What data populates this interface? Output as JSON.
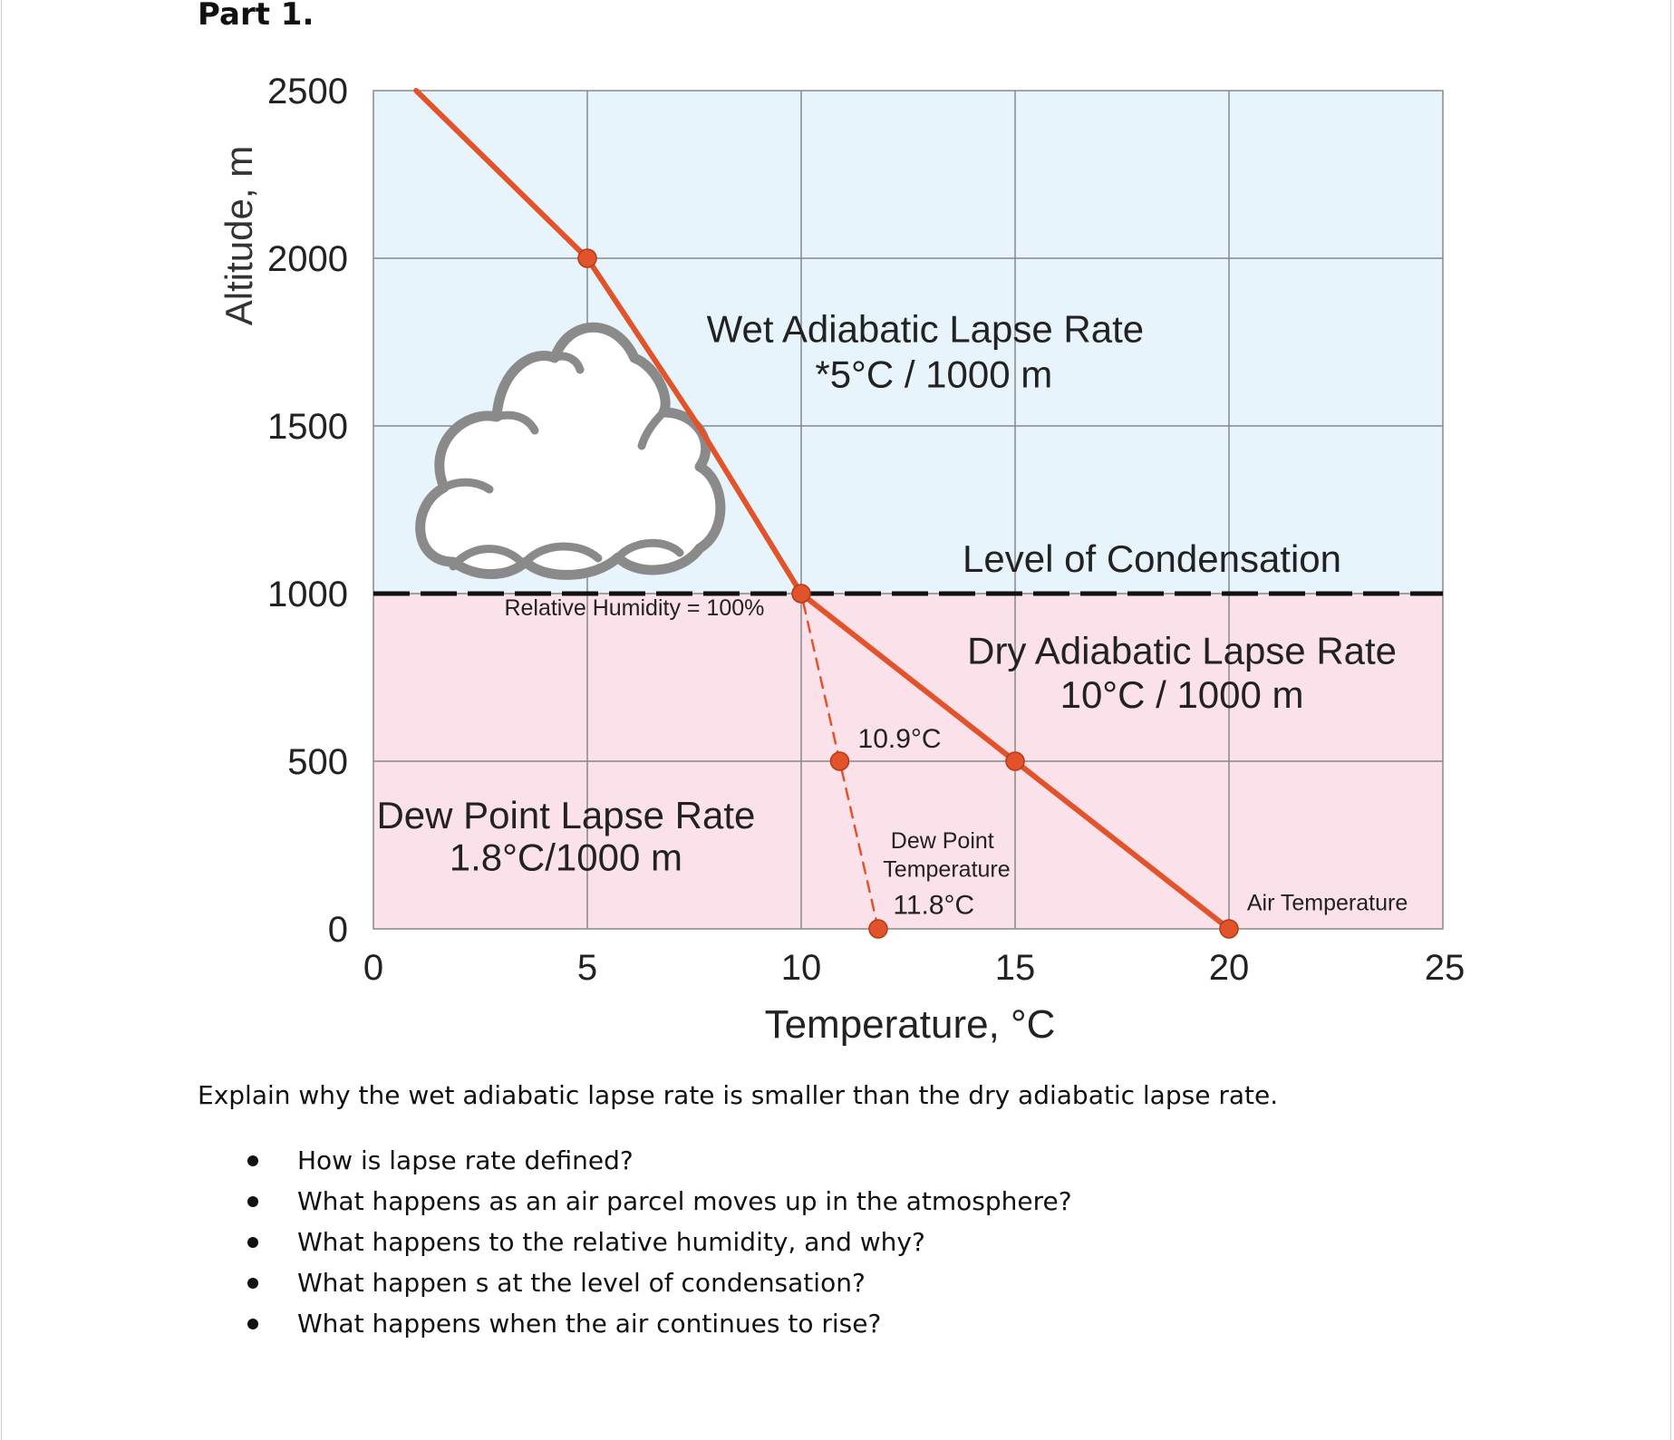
{
  "page": {
    "part_title": "Part 1.",
    "question": "Explain why the wet adiabatic lapse rate is smaller than the dry adiabatic lapse rate.",
    "bullets": [
      "How is lapse rate defined?",
      "What happens as an air parcel moves up in the atmosphere?",
      "What happens to the relative humidity, and why?",
      "What happen s at the level of condensation?",
      "What happens when the air continues to rise?"
    ]
  },
  "chart_data": {
    "type": "line",
    "xlabel": "Temperature, °C",
    "ylabel": "Altitude, m",
    "xlim": [
      0,
      25
    ],
    "ylim": [
      0,
      2500
    ],
    "xticks": [
      0,
      5,
      10,
      15,
      20,
      25
    ],
    "yticks": [
      0,
      500,
      1000,
      1500,
      2000,
      2500
    ],
    "grid": true,
    "condensation_level": 1000,
    "regions": {
      "above_condensation": {
        "color": "#e8f4fc"
      },
      "below_condensation": {
        "color": "#fbe1ea"
      }
    },
    "colors": {
      "series": "#e2532b",
      "grid": "#888888",
      "dashed_level": "#111111"
    },
    "series": [
      {
        "style": "solid",
        "points": [
          [
            1,
            2500
          ],
          [
            5,
            2000
          ],
          [
            7.6,
            1500
          ],
          [
            10,
            1000
          ],
          [
            15,
            500
          ],
          [
            20,
            0
          ]
        ],
        "markers": [
          [
            5,
            2000
          ],
          [
            10,
            1000
          ],
          [
            15,
            500
          ],
          [
            20,
            0
          ]
        ]
      },
      {
        "style": "dashed",
        "points": [
          [
            11.8,
            0
          ],
          [
            10.9,
            500
          ],
          [
            10,
            1000
          ]
        ],
        "markers": [
          [
            11.8,
            0
          ],
          [
            10.9,
            500
          ]
        ]
      }
    ],
    "annotations": [
      {
        "text": "Wet Adiabatic Lapse Rate",
        "x": 12.9,
        "y": 1750,
        "size": "large"
      },
      {
        "text": "*5°C / 1000 m",
        "x": 13.1,
        "y": 1615,
        "size": "large"
      },
      {
        "text": "Level of Condensation",
        "x": 18.2,
        "y": 1065,
        "size": "large"
      },
      {
        "text": "Relative Humidity = 100%",
        "x": 6.1,
        "y": 935,
        "size": "small"
      },
      {
        "text": "Dry Adiabatic Lapse Rate",
        "x": 18.9,
        "y": 790,
        "size": "large"
      },
      {
        "text": "10°C / 1000 m",
        "x": 18.9,
        "y": 660,
        "size": "large"
      },
      {
        "text": "10.9°C",
        "x": 12.3,
        "y": 540,
        "size": "medium"
      },
      {
        "text": "Dew Point Lapse Rate",
        "x": 4.5,
        "y": 300,
        "size": "large"
      },
      {
        "text": "1.8°C/1000 m",
        "x": 4.5,
        "y": 175,
        "size": "large"
      },
      {
        "text": "Dew Point",
        "x": 13.3,
        "y": 240,
        "size": "small"
      },
      {
        "text": "Temperature",
        "x": 13.4,
        "y": 155,
        "size": "small"
      },
      {
        "text": "11.8°C",
        "x": 13.1,
        "y": 45,
        "size": "medium"
      },
      {
        "text": "Air Temperature",
        "x": 22.3,
        "y": 55,
        "size": "small"
      }
    ]
  }
}
